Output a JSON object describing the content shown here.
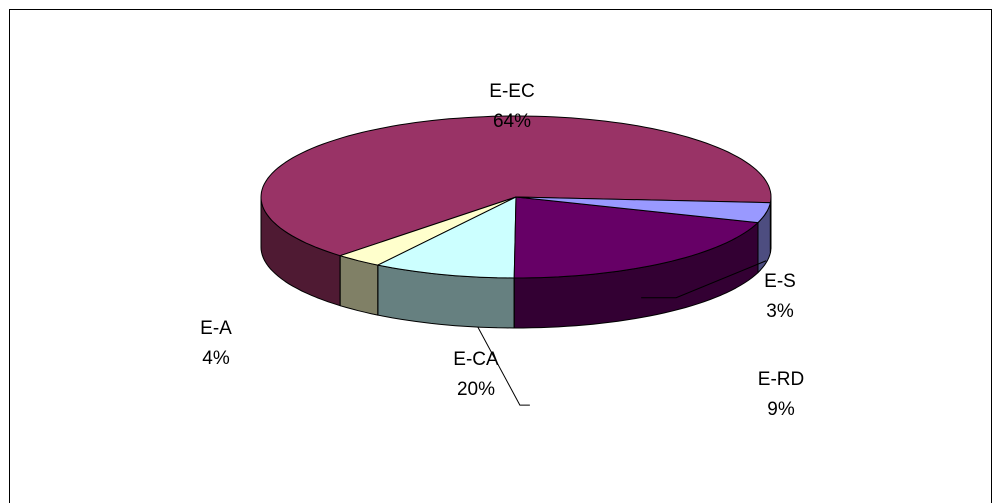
{
  "chart_data": {
    "type": "pie",
    "style": "3d-exploded-perspective",
    "title": "",
    "legend": "none",
    "slices": [
      {
        "label": "E-EC",
        "value": 64,
        "value_label": "64%",
        "top_color": "#993366",
        "side_color": "#4F1A33"
      },
      {
        "label": "E-S",
        "value": 3,
        "value_label": "3%",
        "top_color": "#FFFFCC",
        "side_color": "#808066"
      },
      {
        "label": "E-RD",
        "value": 9,
        "value_label": "9%",
        "top_color": "#CCFFFF",
        "side_color": "#668080"
      },
      {
        "label": "E-CA",
        "value": 20,
        "value_label": "20%",
        "top_color": "#660066",
        "side_color": "#330033"
      },
      {
        "label": "E-A",
        "value": 4,
        "value_label": "4%",
        "top_color": "#9999FF",
        "side_color": "#4D4D80"
      }
    ]
  }
}
